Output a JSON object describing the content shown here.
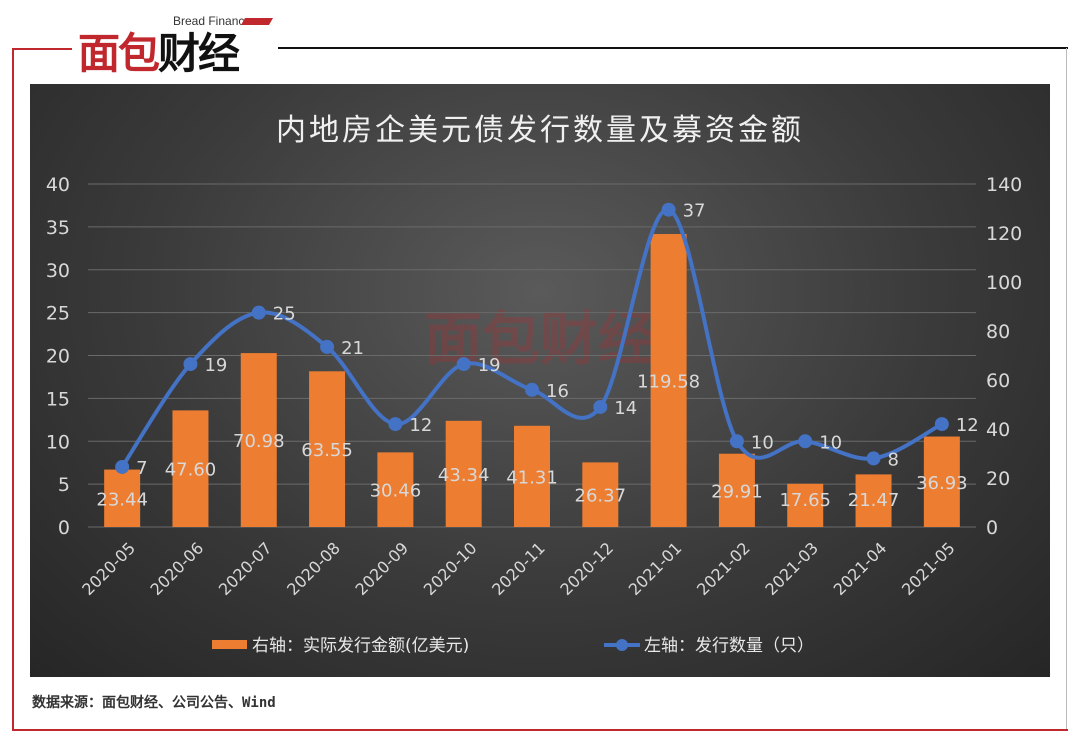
{
  "logo": {
    "en": "Bread Finance",
    "cn_red": "面包",
    "cn_black": "财经"
  },
  "source": "数据来源：面包财经、公司公告、Wind",
  "watermark": "面包财经",
  "chart_data": {
    "type": "bar+line",
    "title": "内地房企美元债发行数量及募资金额",
    "categories": [
      "2020-05",
      "2020-06",
      "2020-07",
      "2020-08",
      "2020-09",
      "2020-10",
      "2020-11",
      "2020-12",
      "2021-01",
      "2021-02",
      "2021-03",
      "2021-04",
      "2021-05"
    ],
    "series": [
      {
        "name": "右轴：实际发行金额(亿美元)",
        "type": "bar",
        "axis": "right",
        "color": "#ed7d31",
        "values": [
          23.44,
          47.6,
          70.98,
          63.55,
          30.46,
          43.34,
          41.31,
          26.37,
          119.58,
          29.91,
          17.65,
          21.47,
          36.93
        ],
        "labels": [
          "23.44",
          "47.60",
          "70.98",
          "63.55",
          "30.46",
          "43.34",
          "41.31",
          "26.37",
          "119.58",
          "29.91",
          "17.65",
          "21.47",
          "36.93"
        ]
      },
      {
        "name": "左轴：发行数量（只）",
        "type": "line",
        "axis": "left",
        "color": "#4472c4",
        "smooth": true,
        "values": [
          7,
          19,
          25,
          21,
          12,
          19,
          16,
          14,
          37,
          10,
          10,
          8,
          12
        ]
      }
    ],
    "left_axis": {
      "range": [
        0,
        40
      ],
      "ticks": [
        "0",
        "5",
        "10",
        "15",
        "20",
        "25",
        "30",
        "35",
        "40"
      ]
    },
    "right_axis": {
      "range": [
        0,
        140
      ],
      "ticks": [
        "0",
        "20",
        "40",
        "60",
        "80",
        "100",
        "120",
        "140"
      ]
    },
    "grid": true,
    "legend": "bottom"
  }
}
